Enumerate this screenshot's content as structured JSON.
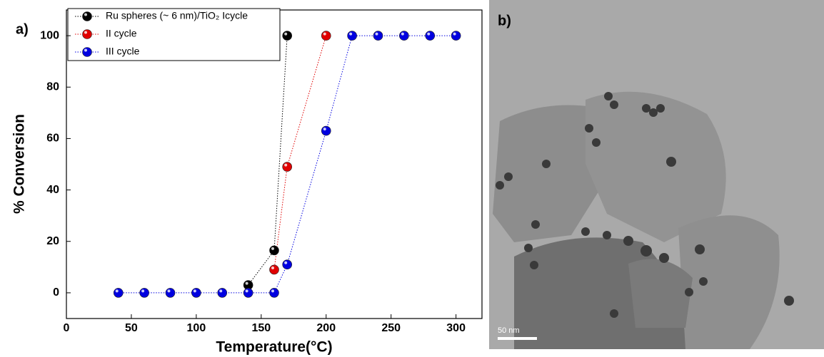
{
  "panel_labels": [
    "a)",
    "b)"
  ],
  "chart_data": {
    "type": "scatter-line",
    "x_label": "Temperature(°C)",
    "y_label": "% Conversion",
    "xlim": [
      0,
      320
    ],
    "ylim": [
      -10,
      110
    ],
    "xticks": [
      0,
      50,
      100,
      150,
      200,
      250,
      300
    ],
    "yticks": [
      0,
      20,
      40,
      60,
      80,
      100
    ],
    "legend": "upper-left",
    "series": [
      {
        "name": "Ru spheres (~ 6 nm)/TiO₂ Icycle",
        "color": "#000000",
        "x": [
          140,
          160,
          170
        ],
        "values": [
          3,
          16.5,
          100
        ]
      },
      {
        "name": "II cycle",
        "color": "#e00000",
        "x": [
          160,
          170,
          200
        ],
        "values": [
          9,
          49,
          100
        ]
      },
      {
        "name": "III cycle",
        "color": "#0000e0",
        "x": [
          40,
          60,
          80,
          100,
          120,
          140,
          160,
          170,
          200,
          220,
          240,
          260,
          280,
          300
        ],
        "values": [
          0,
          0,
          0,
          0,
          0,
          0,
          0,
          11,
          63,
          100,
          100,
          100,
          100,
          100
        ]
      }
    ]
  },
  "image": {
    "scale_bar": "50 nm"
  }
}
